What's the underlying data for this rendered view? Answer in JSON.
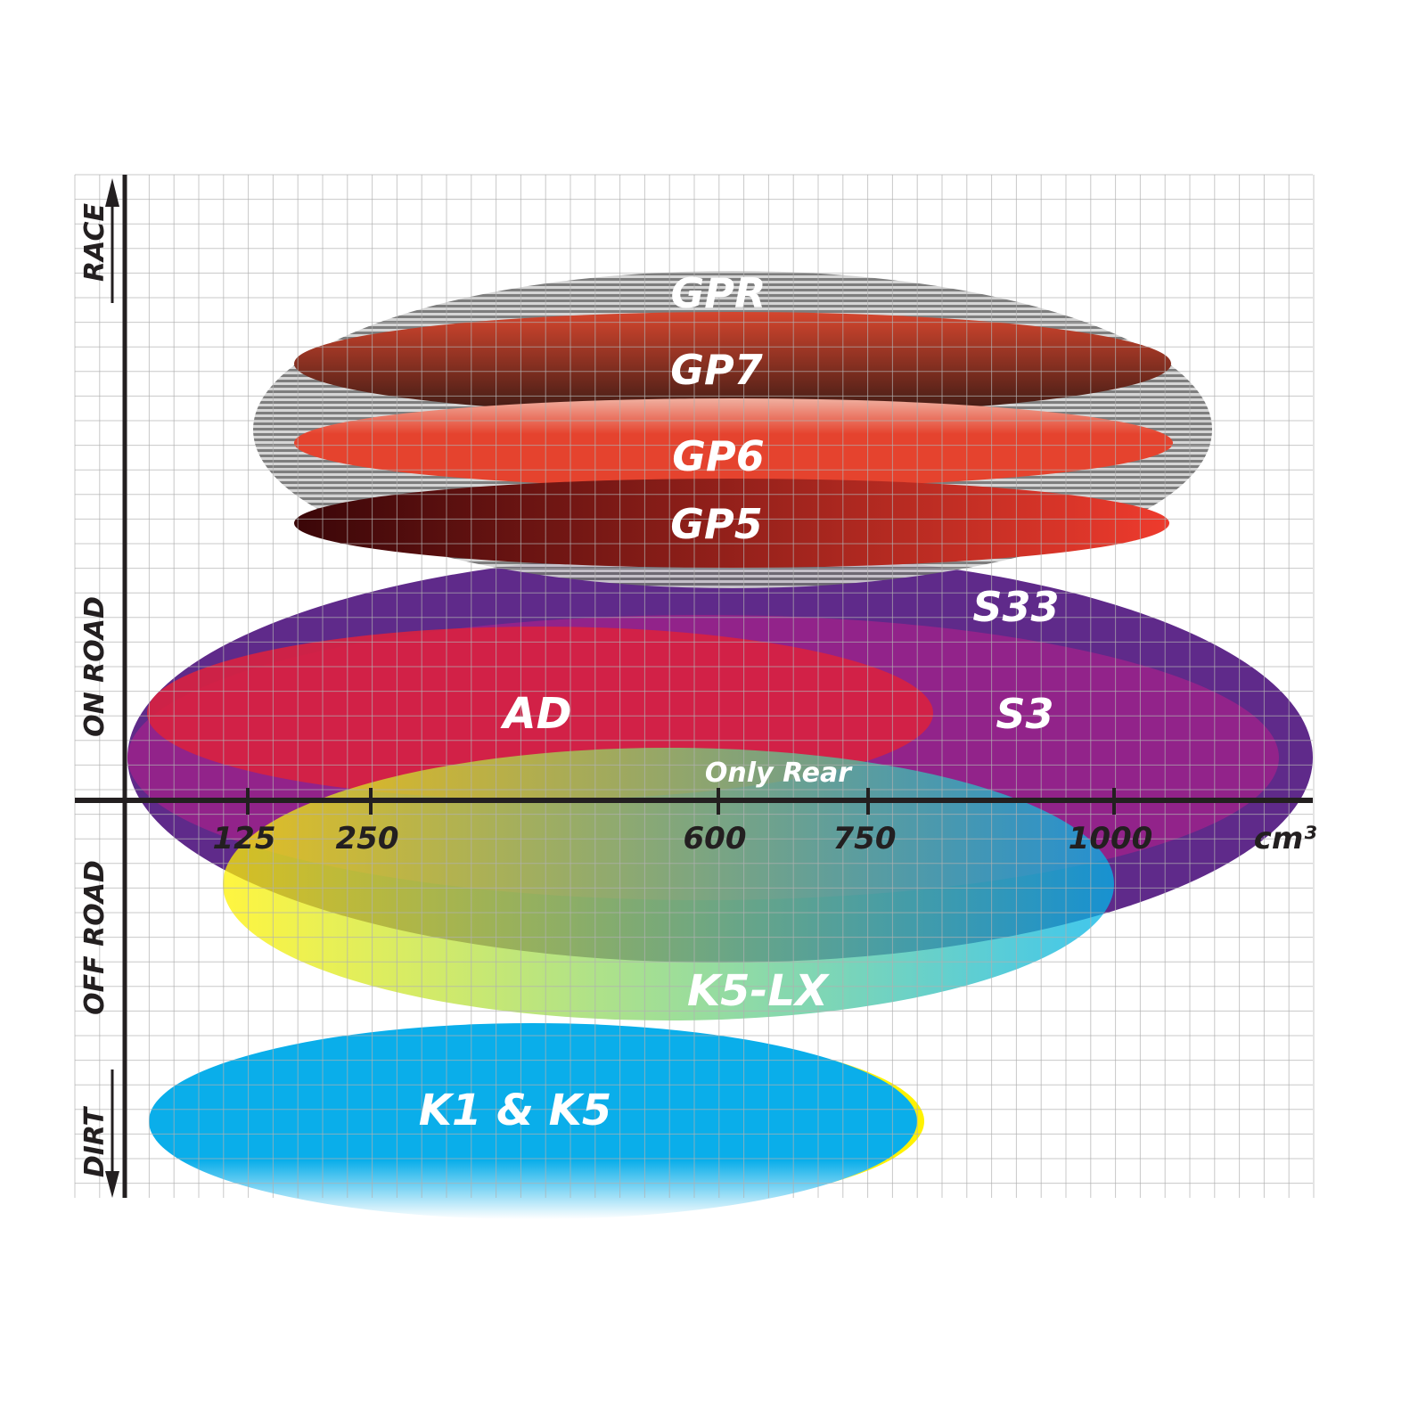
{
  "axes": {
    "y_labels": {
      "race": "RACE",
      "on_road": "ON ROAD",
      "off_road": "OFF ROAD",
      "dirt": "DIRT"
    },
    "x_unit": "cm³",
    "x_ticks": [
      "125",
      "250",
      "600",
      "750",
      "1000"
    ]
  },
  "products": [
    {
      "name": "S33",
      "color": "#5f2a8a"
    },
    {
      "name": "S3",
      "color": "#9b2289"
    },
    {
      "name": "AD",
      "color": "#d9213f"
    },
    {
      "name": "K5-LX",
      "color": "#18b8d8"
    },
    {
      "name": "K1 & K5",
      "color": "#0aaeea"
    },
    {
      "name": "GPR",
      "color": "#9a9a9a"
    },
    {
      "name": "GP7",
      "color": "#8a3a2a"
    },
    {
      "name": "GP6",
      "color": "#e5432e"
    },
    {
      "name": "GP5",
      "color": "#a81a1a"
    }
  ],
  "annotations": {
    "only_rear": "Only Rear"
  }
}
